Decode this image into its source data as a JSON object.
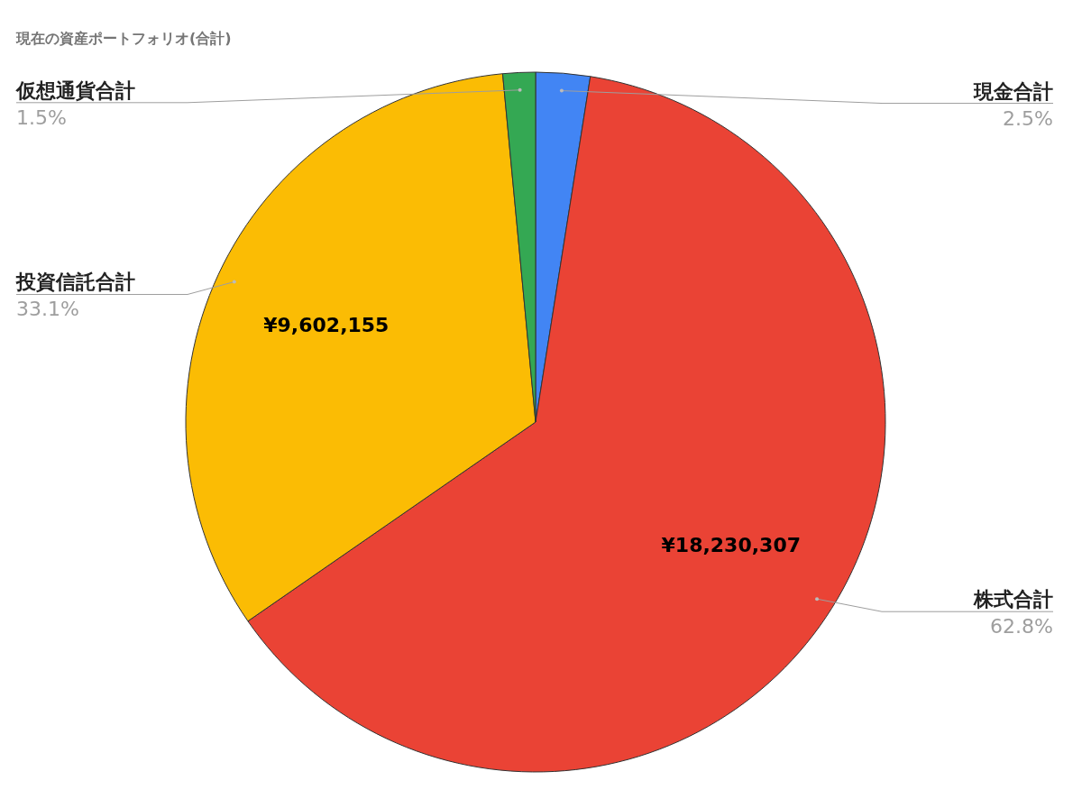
{
  "chart_data": {
    "type": "pie",
    "title": "現在の資産ポートフォリオ(合計)",
    "categories": [
      "現金合計",
      "株式合計",
      "投資信託合計",
      "仮想通貨合計"
    ],
    "values": [
      2.5,
      62.8,
      33.1,
      1.5
    ],
    "colors": [
      "#4285f4",
      "#ea4335",
      "#fbbc04",
      "#34a853"
    ],
    "value_labels": [
      "2.5%",
      "62.8%",
      "33.1%",
      "1.5%"
    ],
    "annotations": [
      {
        "text": "¥18,230,307",
        "x": "株式合計"
      },
      {
        "text": "¥9,602,155",
        "x": "投資信託合計"
      }
    ]
  }
}
